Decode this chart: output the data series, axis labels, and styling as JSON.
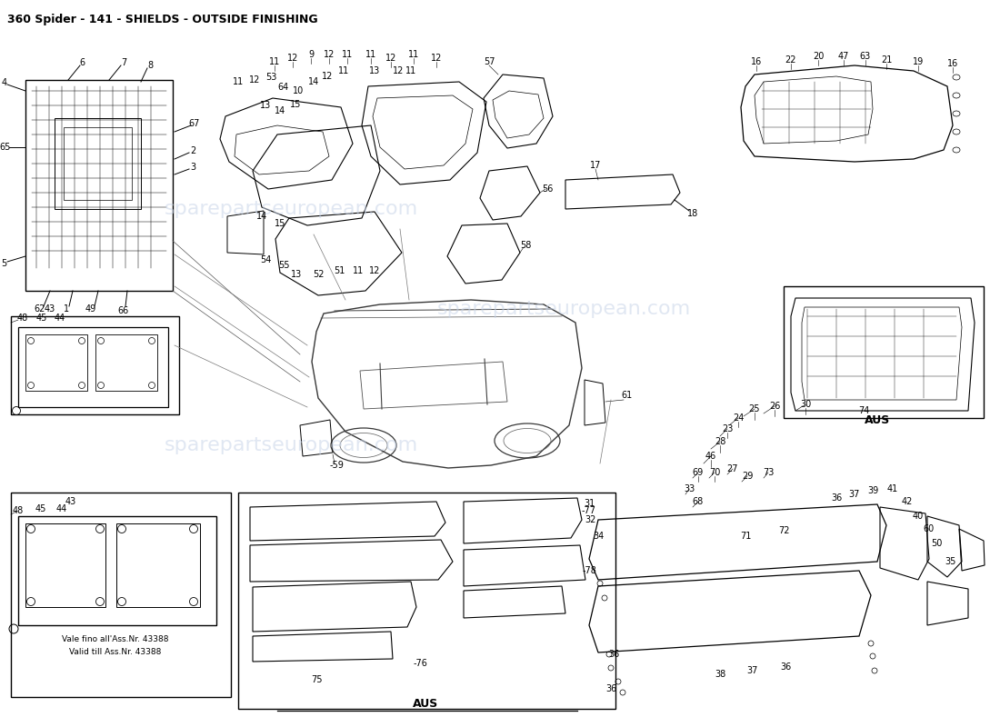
{
  "title": "360 Spider - 141 - SHIELDS - OUTSIDE FINISHING",
  "title_fontsize": 9,
  "background_color": "#ffffff",
  "line_color": "#000000",
  "text_color": "#000000",
  "watermark_color": "#c8d4e8",
  "fig_width": 11.0,
  "fig_height": 8.0,
  "dpi": 100,
  "aus_label_1": "AUS",
  "bottom_center_label": "AUS",
  "note_line1": "Vale fino all'Ass.Nr. 43388",
  "note_line2": "Valid till Ass.Nr. 43388"
}
